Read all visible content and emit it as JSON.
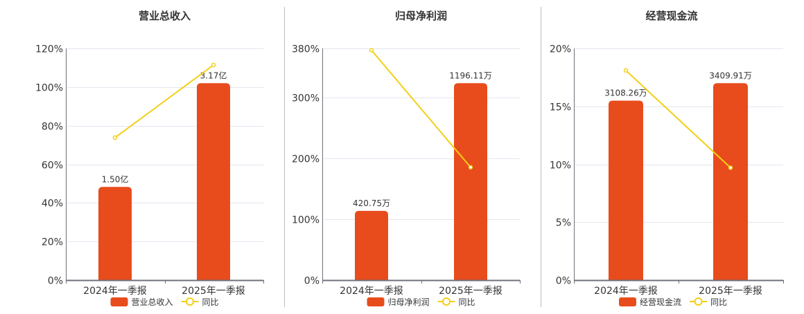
{
  "colors": {
    "bar": "#E84C1D",
    "line": "#F2CF14",
    "grid": "#E3E6EF",
    "axis": "#6E7079",
    "text": "#333333",
    "divider": "#BBBBBB"
  },
  "chart_data": [
    {
      "type": "bar+line",
      "title": "营业总收入",
      "categories": [
        "2024年一季报",
        "2025年一季报"
      ],
      "bar_series": {
        "name": "营业总收入",
        "values": [
          1.5,
          3.17
        ],
        "unit": "亿",
        "labels": [
          "1.50亿",
          "3.17亿"
        ]
      },
      "line_series": {
        "name": "同比",
        "values": [
          73.8,
          111.4
        ],
        "unit": "%"
      },
      "y_ticks": [
        "0%",
        "20%",
        "40%",
        "60%",
        "80%",
        "100%",
        "120%"
      ],
      "y_tick_values": [
        0,
        20,
        40,
        60,
        80,
        100,
        120
      ],
      "ylim": [
        0,
        120
      ],
      "grid": true,
      "legend": "bottom"
    },
    {
      "type": "bar+line",
      "title": "归母净利润",
      "categories": [
        "2024年一季报",
        "2025年一季报"
      ],
      "bar_series": {
        "name": "归母净利润",
        "values": [
          420.75,
          1196.11
        ],
        "unit": "万",
        "labels": [
          "420.75万",
          "1196.11万"
        ]
      },
      "line_series": {
        "name": "同比",
        "values": [
          377,
          185
        ],
        "unit": "%"
      },
      "y_ticks": [
        "0%",
        "100%",
        "200%",
        "300%",
        "380%"
      ],
      "y_tick_values": [
        0,
        100,
        200,
        300,
        380
      ],
      "ylim": [
        0,
        380
      ],
      "grid": true,
      "legend": "bottom"
    },
    {
      "type": "bar+line",
      "title": "经营现金流",
      "categories": [
        "2024年一季报",
        "2025年一季报"
      ],
      "bar_series": {
        "name": "经营现金流",
        "values": [
          3108.26,
          3409.91
        ],
        "unit": "万",
        "labels": [
          "3108.26万",
          "3409.91万"
        ]
      },
      "line_series": {
        "name": "同比",
        "values": [
          18.1,
          9.7
        ],
        "unit": "%"
      },
      "y_ticks": [
        "0%",
        "5%",
        "10%",
        "15%",
        "20%"
      ],
      "y_tick_values": [
        0,
        5,
        10,
        15,
        20
      ],
      "ylim": [
        0,
        20
      ],
      "grid": true,
      "legend": "bottom"
    }
  ]
}
